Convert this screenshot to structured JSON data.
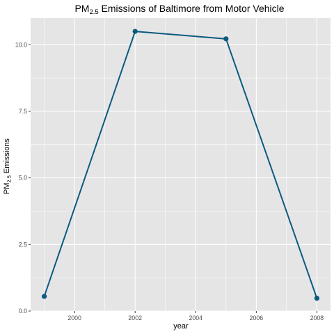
{
  "chart_data": {
    "type": "line",
    "title_main": "PM",
    "title_sub": "2.5",
    "title_rest": " Emissions of Baltimore from Motor Vehicle",
    "xlabel": "year",
    "ylabel_main": "PM",
    "ylabel_sub": "2.5",
    "ylabel_rest": " Emissions",
    "x": [
      1999,
      2002,
      2005,
      2008
    ],
    "y": [
      0.55,
      10.5,
      10.22,
      0.48
    ],
    "xlim": [
      1998.55,
      2008.45
    ],
    "ylim": [
      0,
      11.0
    ],
    "x_ticks": [
      2000,
      2002,
      2004,
      2006,
      2008
    ],
    "x_tick_labels": [
      "2000",
      "2002",
      "2004",
      "2006",
      "2008"
    ],
    "y_ticks": [
      0,
      2.5,
      5,
      7.5,
      10
    ],
    "y_tick_labels": [
      "0.0",
      "2.5",
      "5.0",
      "7.5",
      "10.0"
    ],
    "grid": true,
    "colors": {
      "panel": "#e5e5e5",
      "grid": "#ffffff",
      "line": "#0b5a80",
      "point": "#0b5a80"
    }
  }
}
